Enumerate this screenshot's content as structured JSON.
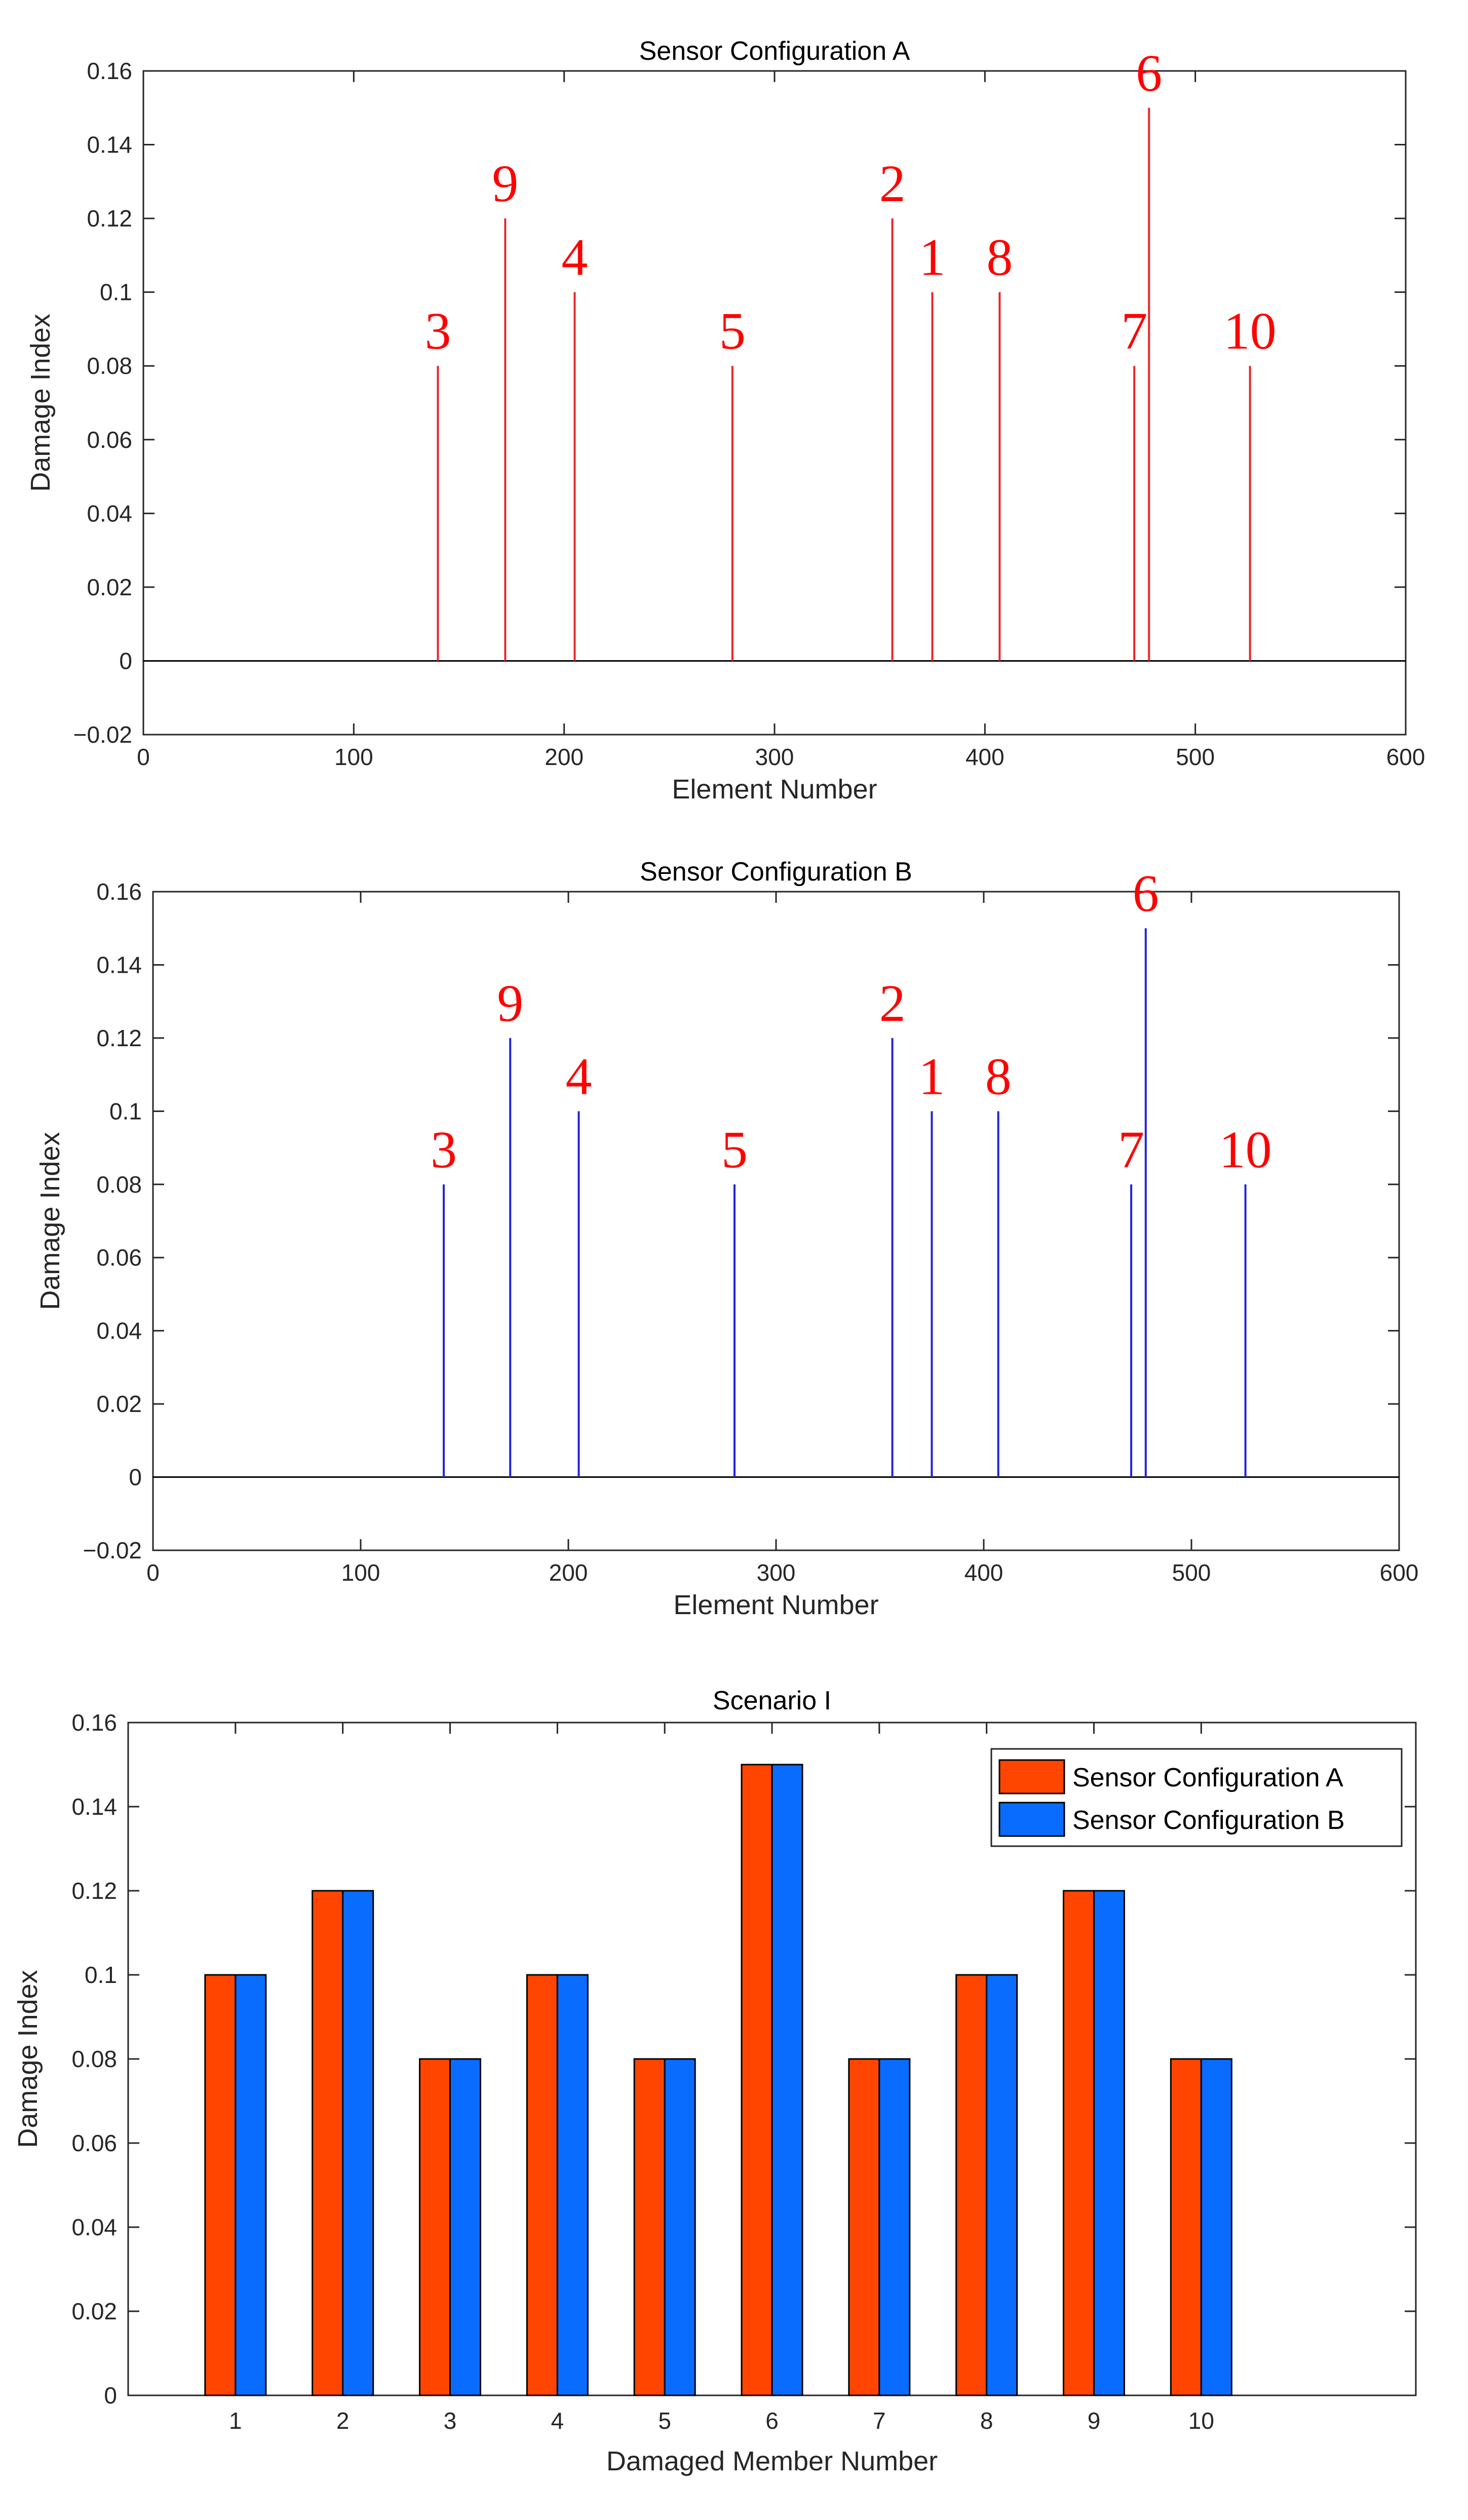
{
  "chart_data": [
    {
      "type": "stem",
      "title": "Sensor Configuration A",
      "xlabel": "Element Number",
      "ylabel": "Damage Index",
      "xlim": [
        0,
        600
      ],
      "ylim": [
        -0.02,
        0.16
      ],
      "xticks": [
        "0",
        "100",
        "200",
        "300",
        "400",
        "500",
        "600"
      ],
      "yticks": [
        "−0.02",
        "0",
        "0.02",
        "0.04",
        "0.06",
        "0.08",
        "0.1",
        "0.12",
        "0.14",
        "0.16"
      ],
      "color": "#e8252a",
      "label_color": "#ff0000",
      "points": [
        {
          "label": "3",
          "x": 140,
          "y": 0.08
        },
        {
          "label": "9",
          "x": 172,
          "y": 0.12
        },
        {
          "label": "4",
          "x": 205,
          "y": 0.1
        },
        {
          "label": "5",
          "x": 280,
          "y": 0.08
        },
        {
          "label": "2",
          "x": 356,
          "y": 0.12
        },
        {
          "label": "1",
          "x": 375,
          "y": 0.1
        },
        {
          "label": "8",
          "x": 407,
          "y": 0.1
        },
        {
          "label": "7",
          "x": 471,
          "y": 0.08
        },
        {
          "label": "6",
          "x": 478,
          "y": 0.15
        },
        {
          "label": "10",
          "x": 526,
          "y": 0.08
        }
      ]
    },
    {
      "type": "stem",
      "title": "Sensor Configuration B",
      "xlabel": "Element Number",
      "ylabel": "Damage Index",
      "xlim": [
        0,
        600
      ],
      "ylim": [
        -0.02,
        0.16
      ],
      "xticks": [
        "0",
        "100",
        "200",
        "300",
        "400",
        "500",
        "600"
      ],
      "yticks": [
        "−0.02",
        "0",
        "0.02",
        "0.04",
        "0.06",
        "0.08",
        "0.1",
        "0.12",
        "0.14",
        "0.16"
      ],
      "color": "#2222dd",
      "label_color": "#ff0000",
      "points": [
        {
          "label": "3",
          "x": 140,
          "y": 0.08
        },
        {
          "label": "9",
          "x": 172,
          "y": 0.12
        },
        {
          "label": "4",
          "x": 205,
          "y": 0.1
        },
        {
          "label": "5",
          "x": 280,
          "y": 0.08
        },
        {
          "label": "2",
          "x": 356,
          "y": 0.12
        },
        {
          "label": "1",
          "x": 375,
          "y": 0.1
        },
        {
          "label": "8",
          "x": 407,
          "y": 0.1
        },
        {
          "label": "7",
          "x": 471,
          "y": 0.08
        },
        {
          "label": "6",
          "x": 478,
          "y": 0.15
        },
        {
          "label": "10",
          "x": 526,
          "y": 0.08
        }
      ]
    },
    {
      "type": "bar",
      "title": "Scenario I",
      "xlabel": "Damaged Member Number",
      "ylabel": "Damage Index",
      "ylim": [
        0,
        0.16
      ],
      "yticks": [
        "0",
        "0.02",
        "0.04",
        "0.06",
        "0.08",
        "0.1",
        "0.12",
        "0.14",
        "0.16"
      ],
      "categories": [
        "1",
        "2",
        "3",
        "4",
        "5",
        "6",
        "7",
        "8",
        "9",
        "10"
      ],
      "legend_position": "top-right",
      "series": [
        {
          "name": "Sensor Configuration A",
          "color": "#ff4500",
          "values": [
            0.1,
            0.12,
            0.08,
            0.1,
            0.08,
            0.15,
            0.08,
            0.1,
            0.12,
            0.08
          ]
        },
        {
          "name": "Sensor Configuration B",
          "color": "#0a6cff",
          "values": [
            0.1,
            0.12,
            0.08,
            0.1,
            0.08,
            0.15,
            0.08,
            0.1,
            0.12,
            0.08
          ]
        }
      ]
    }
  ]
}
